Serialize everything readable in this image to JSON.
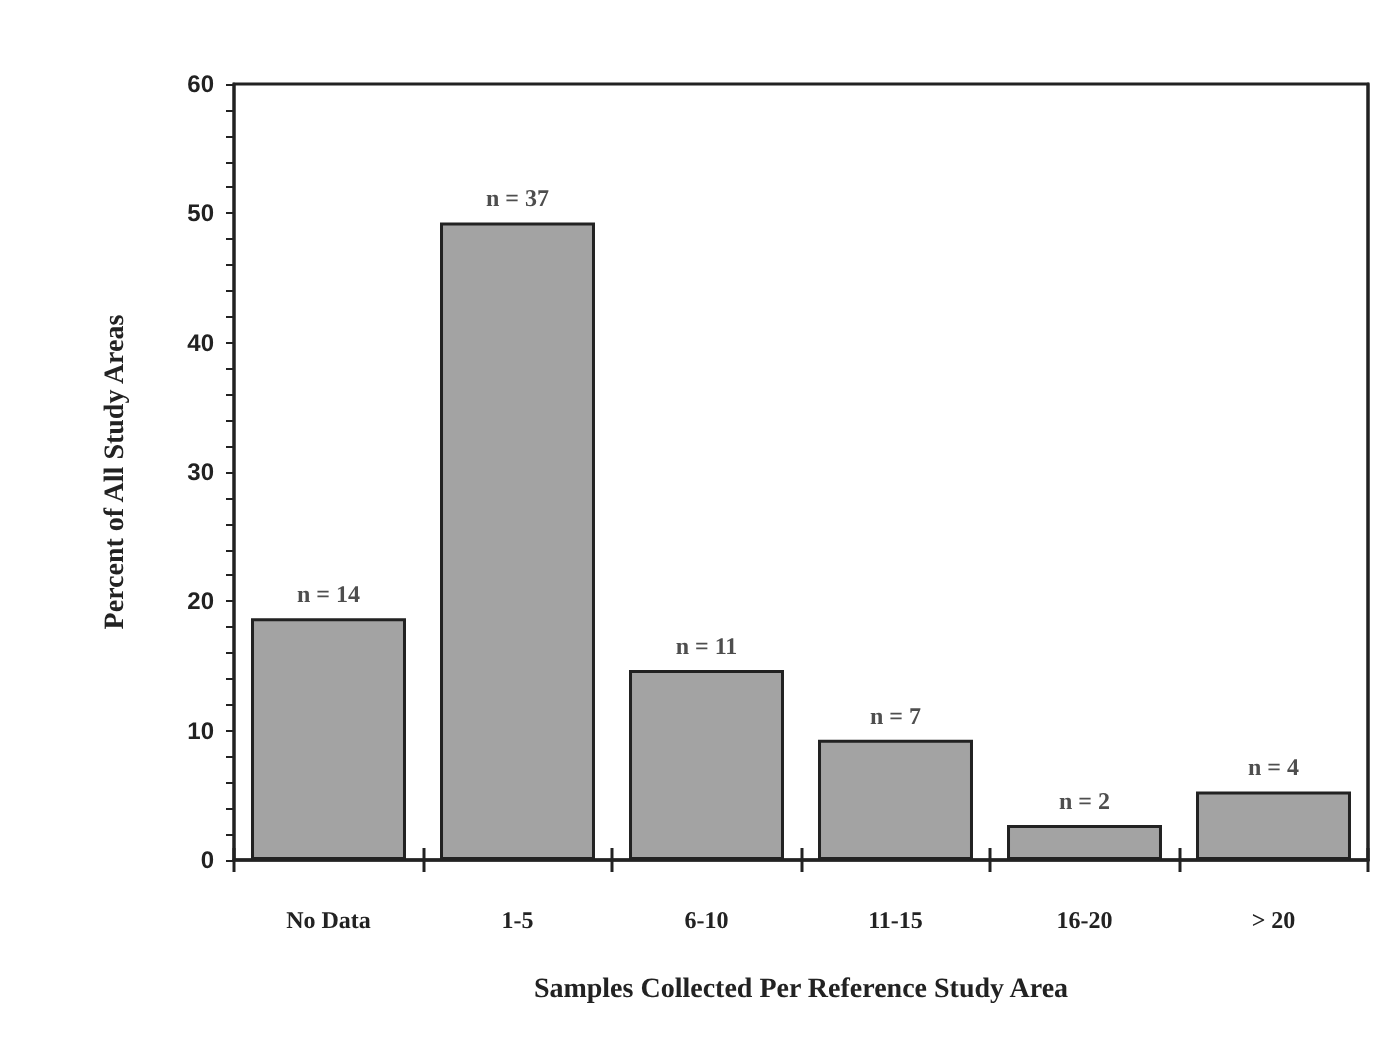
{
  "chart_data": {
    "type": "bar",
    "xlabel": "Samples Collected Per Reference Study Area",
    "ylabel": "Percent of All Study Areas",
    "categories": [
      "No Data",
      "1-5",
      "6-10",
      "11-15",
      "16-20",
      "> 20"
    ],
    "values": [
      18.7,
      49.3,
      14.7,
      9.3,
      2.7,
      5.3
    ],
    "annotations": [
      {
        "text": "n = 14",
        "x": "No Data",
        "y": 18.7
      },
      {
        "text": "n = 37",
        "x": "1-5",
        "y": 49.3
      },
      {
        "text": "n = 11",
        "x": "6-10",
        "y": 14.7
      },
      {
        "text": "n = 7",
        "x": "11-15",
        "y": 9.3
      },
      {
        "text": "n = 2",
        "x": "16-20",
        "y": 2.7
      },
      {
        "text": "n = 4",
        "x": "> 20",
        "y": 5.3
      }
    ],
    "color": "#a3a3a3",
    "ylim": [
      0,
      60
    ],
    "yticks": [
      0,
      {
        "value": 2,
        "label": null
      },
      {
        "value": 4,
        "label": null
      },
      {
        "value": 6,
        "label": null
      },
      {
        "value": 8,
        "label": null
      },
      10,
      {
        "value": 12,
        "label": null
      },
      {
        "value": 14,
        "label": null
      },
      {
        "value": 16,
        "label": null
      },
      {
        "value": 18,
        "label": null
      },
      20,
      {
        "value": 22,
        "label": null
      },
      {
        "value": 24,
        "label": null
      },
      {
        "value": 26,
        "label": null
      },
      {
        "value": 28,
        "label": null
      },
      30,
      {
        "value": 32,
        "label": null
      },
      {
        "value": 34,
        "label": null
      },
      {
        "value": 36,
        "label": null
      },
      {
        "value": 38,
        "label": null
      },
      40,
      {
        "value": 42,
        "label": null
      },
      {
        "value": 44,
        "label": null
      },
      {
        "value": 46,
        "label": null
      },
      {
        "value": 48,
        "label": null
      },
      50,
      {
        "value": 52,
        "label": null
      },
      {
        "value": 54,
        "label": null
      },
      {
        "value": 56,
        "label": null
      },
      {
        "value": 58,
        "label": null
      },
      60
    ],
    "grid": false
  }
}
